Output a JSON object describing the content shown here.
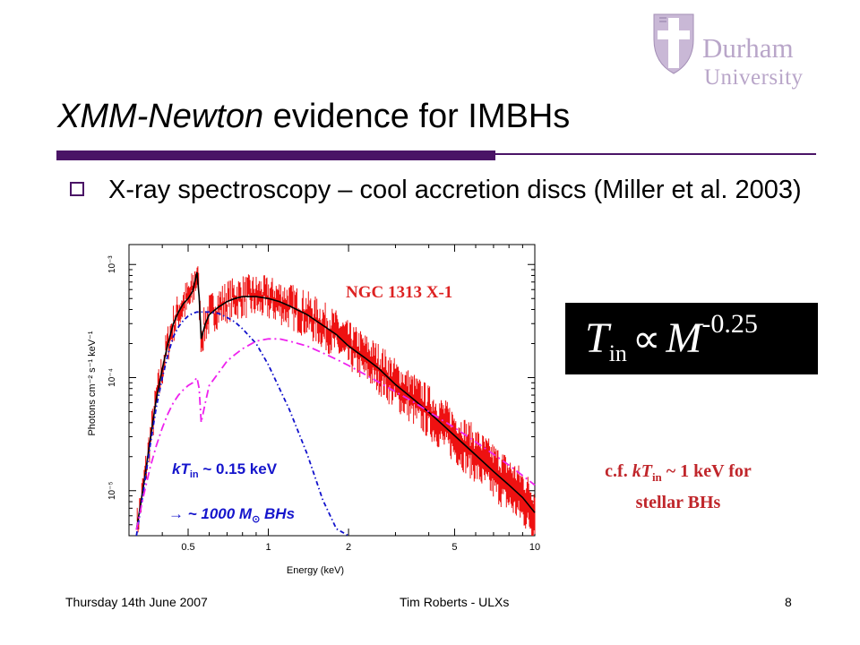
{
  "logo": {
    "name": "Durham",
    "sub": "University"
  },
  "title": {
    "italic": "XMM-Newton",
    "rest": " evidence for IMBHs"
  },
  "bullet": {
    "text": "X-ray spectroscopy – cool accretion discs (Miller et al. 2003)"
  },
  "figure": {
    "source_label": "NGC 1313 X-1",
    "annotation_kT_prefix": "kT",
    "annotation_kT_sub": "in",
    "annotation_kT_value": " ~ 0.15 keV",
    "annotation_bh": "→ ~ 1000 M",
    "annotation_bh_sym": "⊙",
    "annotation_bh_end": " BHs"
  },
  "chart_data": {
    "type": "line",
    "xlabel": "Energy (keV)",
    "ylabel": "Photons cm⁻² s⁻¹ keV⁻¹",
    "xscale": "log",
    "yscale": "log",
    "xlim": [
      0.3,
      10
    ],
    "ylim": [
      4e-06,
      0.0015
    ],
    "x_ticks": [
      "0.5",
      "1",
      "2",
      "5",
      "10"
    ],
    "y_ticks": [
      "10⁻⁵",
      "10⁻⁴",
      "10⁻³"
    ],
    "colors": {
      "data": "#ee1111",
      "total": "#000000",
      "disk": "#1111cc",
      "powerlaw": "#ee22ee"
    },
    "series": [
      {
        "name": "",
        "style": "data",
        "x": [
          0.32,
          0.34,
          0.36,
          0.38,
          0.4,
          0.42,
          0.44,
          0.46,
          0.48,
          0.5,
          0.52,
          0.54,
          0.55,
          0.56,
          0.58,
          0.6,
          0.65,
          0.7,
          0.75,
          0.8,
          0.9,
          1,
          1.1,
          1.2,
          1.4,
          1.6,
          1.8,
          2,
          2.3,
          2.6,
          3,
          3.5,
          4,
          4.5,
          5,
          6,
          7,
          8,
          9,
          10
        ],
        "y": [
          4.5e-06,
          1.1e-05,
          2.8e-05,
          6.5e-05,
          0.00012,
          0.0002,
          0.0003,
          0.00038,
          0.00045,
          0.0005,
          0.00058,
          0.00085,
          0.00052,
          0.00022,
          0.0003,
          0.00036,
          0.00042,
          0.00047,
          0.0005,
          0.00052,
          0.00052,
          0.0005,
          0.00047,
          0.00043,
          0.00036,
          0.00029,
          0.00024,
          0.00019,
          0.00015,
          0.00012,
          8.68e-05,
          6.45e-05,
          4.95e-05,
          3.85e-05,
          3.06e-05,
          2.07e-05,
          1.48e-05,
          1.12e-05,
          8.7e-06,
          6.4e-06
        ]
      },
      {
        "name": "",
        "style": "total",
        "x": [
          0.32,
          0.34,
          0.36,
          0.38,
          0.4,
          0.42,
          0.44,
          0.46,
          0.48,
          0.5,
          0.52,
          0.54,
          0.55,
          0.56,
          0.58,
          0.6,
          0.65,
          0.7,
          0.75,
          0.8,
          0.9,
          1,
          1.1,
          1.2,
          1.4,
          1.6,
          1.8,
          2,
          2.3,
          2.6,
          3,
          3.5,
          4,
          4.5,
          5,
          6,
          7,
          8,
          9,
          10
        ],
        "y": [
          4.5e-06,
          1.1e-05,
          2.8e-05,
          6.5e-05,
          0.00012,
          0.0002,
          0.0003,
          0.00038,
          0.00045,
          0.0005,
          0.00058,
          0.00085,
          0.00052,
          0.00022,
          0.0003,
          0.00036,
          0.00042,
          0.00047,
          0.0005,
          0.00052,
          0.00052,
          0.0005,
          0.00047,
          0.00043,
          0.00036,
          0.00029,
          0.00024,
          0.00019,
          0.00015,
          0.00012,
          8.68e-05,
          6.45e-05,
          4.95e-05,
          3.85e-05,
          3.06e-05,
          2.07e-05,
          1.48e-05,
          1.12e-05,
          8.7e-06,
          6.4e-06
        ]
      },
      {
        "name": "",
        "style": "disk",
        "x": [
          0.32,
          0.34,
          0.36,
          0.38,
          0.4,
          0.42,
          0.44,
          0.46,
          0.48,
          0.5,
          0.52,
          0.54,
          0.56,
          0.6,
          0.65,
          0.7,
          0.75,
          0.8,
          0.9,
          1,
          1.2,
          1.4,
          1.6,
          1.8,
          2
        ],
        "y": [
          4e-06,
          1e-05,
          2.5e-05,
          5.5e-05,
          0.0001,
          0.00016,
          0.00023,
          0.00028,
          0.00032,
          0.00035,
          0.00037,
          0.00038,
          0.00038,
          0.00038,
          0.00037,
          0.00034,
          0.00031,
          0.00027,
          0.0002,
          0.00013,
          5.2e-05,
          2.1e-05,
          8.3e-06,
          4.6e-06,
          4e-06
        ]
      },
      {
        "name": "",
        "style": "powerlaw",
        "x": [
          0.32,
          0.34,
          0.36,
          0.38,
          0.4,
          0.42,
          0.44,
          0.46,
          0.48,
          0.5,
          0.52,
          0.54,
          0.55,
          0.56,
          0.58,
          0.6,
          0.65,
          0.7,
          0.75,
          0.8,
          0.9,
          1,
          1.1,
          1.2,
          1.4,
          1.6,
          1.8,
          2,
          2.3,
          2.6,
          3,
          3.5,
          4,
          4.5,
          5,
          6,
          7,
          8,
          9,
          10
        ],
        "y": [
          4.5e-06,
          9e-06,
          1.6e-05,
          2.5e-05,
          3.6e-05,
          4.8e-05,
          6e-05,
          7e-05,
          7.8e-05,
          8.5e-05,
          9e-05,
          0.0001,
          8e-05,
          4e-05,
          6e-05,
          8.5e-05,
          0.00011,
          0.00014,
          0.00016,
          0.00018,
          0.00021,
          0.00022,
          0.00022,
          0.00021,
          0.00019,
          0.000165,
          0.000145,
          0.000128,
          0.000107,
          9.1e-05,
          7.5e-05,
          6.1e-05,
          5e-05,
          4.2e-05,
          3.6e-05,
          2.7e-05,
          2.1e-05,
          1.68e-05,
          1.36e-05,
          1.12e-05
        ]
      }
    ]
  },
  "formula": {
    "T": "T",
    "sub": "in",
    "prop": "∝",
    "M": "M",
    "exp": "-0.25"
  },
  "note": {
    "cf": "c.f. ",
    "kT": "kT",
    "sub": "in",
    "line1_end": " ~ 1 keV for",
    "line2": "stellar BHs"
  },
  "footer": {
    "date": "Thursday 14th June 2007",
    "author": "Tim Roberts - ULXs",
    "page": "8"
  }
}
